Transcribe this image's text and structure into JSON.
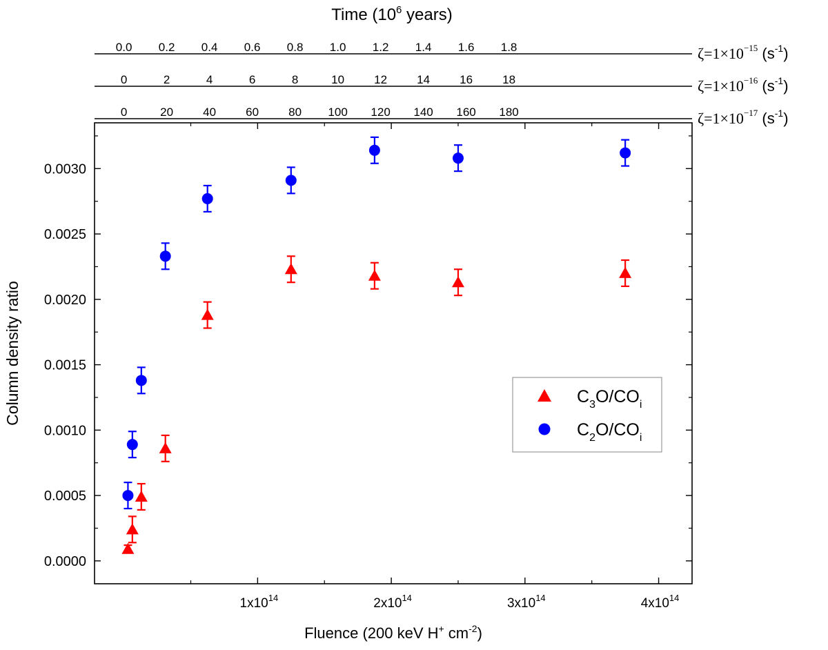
{
  "chart_data": {
    "type": "scatter",
    "xlabel": {
      "main": "Fluence (200 keV H",
      "sup1": "+",
      "mid": " cm",
      "sup2": "-2",
      "end": ")"
    },
    "ylabel": "Column density ratio",
    "xlim": [
      -22000000000000.0,
      425000000000000.0
    ],
    "ylim": [
      -0.000175,
      0.00335
    ],
    "x_ticks": [
      {
        "value": 100000000000000.0,
        "mantissa": "1x10",
        "exponent": "14"
      },
      {
        "value": 200000000000000.0,
        "mantissa": "2x10",
        "exponent": "14"
      },
      {
        "value": 300000000000000.0,
        "mantissa": "3x10",
        "exponent": "14"
      },
      {
        "value": 400000000000000.0,
        "mantissa": "4x10",
        "exponent": "14"
      }
    ],
    "y_ticks": [
      {
        "value": 0.0,
        "label": "0.0000"
      },
      {
        "value": 0.0005,
        "label": "0.0005"
      },
      {
        "value": 0.001,
        "label": "0.0010"
      },
      {
        "value": 0.0015,
        "label": "0.0015"
      },
      {
        "value": 0.002,
        "label": "0.0020"
      },
      {
        "value": 0.0025,
        "label": "0.0025"
      },
      {
        "value": 0.003,
        "label": "0.0030"
      }
    ],
    "grid": false,
    "legend_position": "right-middle",
    "series": [
      {
        "name": "C3O/COi",
        "label_parts": {
          "a": "C",
          "sub1": "3",
          "b": "O/CO",
          "sub2": "i"
        },
        "marker": "triangle",
        "color": "#ff0000",
        "points": [
          {
            "x": 3000000000000.0,
            "y": 9e-05,
            "err": 3e-05
          },
          {
            "x": 6300000000000.0,
            "y": 0.00024,
            "err": 0.0001
          },
          {
            "x": 13000000000000.0,
            "y": 0.00049,
            "err": 0.0001
          },
          {
            "x": 31000000000000.0,
            "y": 0.00086,
            "err": 0.0001
          },
          {
            "x": 62500000000000.0,
            "y": 0.00188,
            "err": 0.0001
          },
          {
            "x": 125000000000000.0,
            "y": 0.00223,
            "err": 0.0001
          },
          {
            "x": 187500000000000.0,
            "y": 0.00218,
            "err": 0.0001
          },
          {
            "x": 250000000000000.0,
            "y": 0.00213,
            "err": 0.0001
          },
          {
            "x": 375000000000000.0,
            "y": 0.0022,
            "err": 0.0001
          }
        ]
      },
      {
        "name": "C2O/COi",
        "label_parts": {
          "a": "C",
          "sub1": "2",
          "b": "O/CO",
          "sub2": "i"
        },
        "marker": "circle",
        "color": "#0000ff",
        "points": [
          {
            "x": 3000000000000.0,
            "y": 0.0005,
            "err": 0.0001
          },
          {
            "x": 6300000000000.0,
            "y": 0.00089,
            "err": 0.0001
          },
          {
            "x": 13000000000000.0,
            "y": 0.00138,
            "err": 0.0001
          },
          {
            "x": 31000000000000.0,
            "y": 0.00233,
            "err": 0.0001
          },
          {
            "x": 62500000000000.0,
            "y": 0.00277,
            "err": 0.0001
          },
          {
            "x": 125000000000000.0,
            "y": 0.00291,
            "err": 0.0001
          },
          {
            "x": 187500000000000.0,
            "y": 0.00314,
            "err": 0.0001
          },
          {
            "x": 250000000000000.0,
            "y": 0.00308,
            "err": 0.0001
          },
          {
            "x": 375000000000000.0,
            "y": 0.00312,
            "err": 0.0001
          }
        ]
      }
    ],
    "top_axes": {
      "title": {
        "main": "Time (10",
        "sup": "6",
        "end": " years)"
      },
      "axes": [
        {
          "label_parts": {
            "zeta": "ζ=1×10",
            "exp": "−15",
            "unit": " (s",
            "unit_sup": "-1",
            "close": ")"
          },
          "ticks": [
            "0.0",
            "0.2",
            "0.4",
            "0.6",
            "0.8",
            "1.0",
            "1.2",
            "1.4",
            "1.6",
            "1.8"
          ],
          "tick_step_fluence": 32000000000000.0
        },
        {
          "label_parts": {
            "zeta": "ζ=1×10",
            "exp": "−16",
            "unit": " (s",
            "unit_sup": "-1",
            "close": ")"
          },
          "ticks": [
            "0",
            "2",
            "4",
            "6",
            "8",
            "10",
            "12",
            "14",
            "16",
            "18"
          ],
          "tick_step_fluence": 32000000000000.0
        },
        {
          "label_parts": {
            "zeta": "ζ=1×10",
            "exp": "−17",
            "unit": " (s",
            "unit_sup": "-1",
            "close": ")"
          },
          "ticks": [
            "0",
            "20",
            "40",
            "60",
            "80",
            "100",
            "120",
            "140",
            "160",
            "180"
          ],
          "tick_step_fluence": 32000000000000.0
        }
      ]
    }
  }
}
